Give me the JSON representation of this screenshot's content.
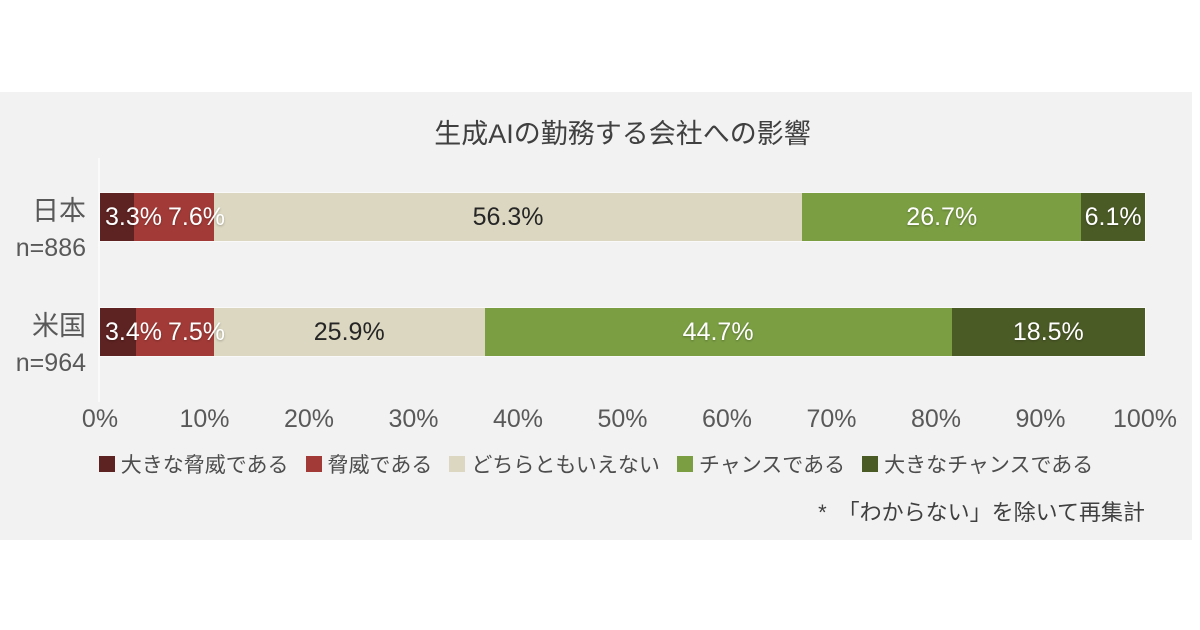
{
  "page": {
    "background": "#ffffff",
    "panel_background": "#f2f2f2",
    "axis_line_color": "#fafafa"
  },
  "chart_data": {
    "type": "bar",
    "orientation": "horizontal",
    "stacked": true,
    "title": "生成AIの勤務する会社への影響",
    "categories": [
      {
        "label": "日本",
        "n": "n=886"
      },
      {
        "label": "米国",
        "n": "n=964"
      }
    ],
    "series": [
      {
        "name": "大きな脅威である",
        "color": "#5d2322",
        "label_color": "#ffffff",
        "values": [
          3.3,
          3.4
        ]
      },
      {
        "name": "脅威である",
        "color": "#a23b38",
        "label_color": "#ffffff",
        "values": [
          7.6,
          7.5
        ]
      },
      {
        "name": "どちらともいえない",
        "color": "#dcd7c1",
        "label_color": "#262626",
        "values": [
          56.3,
          25.9
        ]
      },
      {
        "name": "チャンスである",
        "color": "#7b9e43",
        "label_color": "#ffffff",
        "values": [
          26.7,
          44.7
        ]
      },
      {
        "name": "大きなチャンスである",
        "color": "#4b5b26",
        "label_color": "#ffffff",
        "values": [
          6.1,
          18.5
        ]
      }
    ],
    "value_suffix": "%",
    "xlim": [
      0,
      100
    ],
    "x_ticks": [
      "0%",
      "10%",
      "20%",
      "30%",
      "40%",
      "50%",
      "60%",
      "70%",
      "80%",
      "90%",
      "100%"
    ],
    "legend_position": "bottom",
    "grid": false
  },
  "footnote": "*　「わからない」を除いて再集計"
}
